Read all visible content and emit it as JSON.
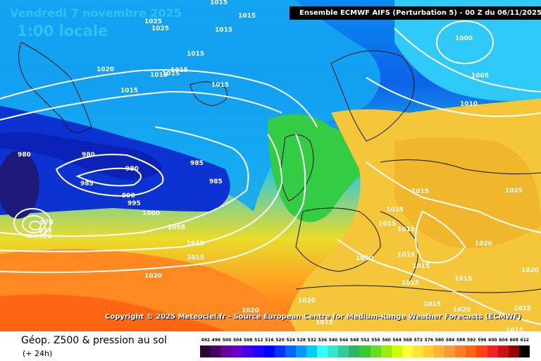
{
  "header": {
    "date": "Vendredi 7 novembre 2025",
    "local_time": "1:00 locale",
    "model_info": "Ensemble ECMWF AIFS  (Perturbation 5)  -  00 Z du 06/11/2025"
  },
  "map": {
    "copyright": "Copyright © 2025 Meteociel.fr - Source European Centre for Medium-Range Weather Forecasts (ECMWF)",
    "isobar_labels": [
      "1015",
      "1015",
      "1015",
      "1025",
      "1025",
      "1015",
      "1015",
      "1020",
      "1015",
      "1015",
      "1015",
      "1015",
      "980",
      "980",
      "980",
      "985",
      "985",
      "985",
      "990",
      "995",
      "1000",
      "1005",
      "970",
      "975",
      "980",
      "1010",
      "1015",
      "1020",
      "1000",
      "1005",
      "1010",
      "1015",
      "1015",
      "1015",
      "1015",
      "1015",
      "1015",
      "1015",
      "1010",
      "1015",
      "1025",
      "1020",
      "1020",
      "1015",
      "1015",
      "1020",
      "1015",
      "1020",
      "1015",
      "1020"
    ]
  },
  "footer": {
    "field_title": "Géop. Z500 & pression au sol",
    "field_subtitle": "(+ 24h)",
    "legend_values": [
      "492",
      "496",
      "500",
      "504",
      "508",
      "512",
      "516",
      "520",
      "524",
      "528",
      "532",
      "536",
      "540",
      "544",
      "548",
      "552",
      "556",
      "560",
      "564",
      "568",
      "572",
      "576",
      "580",
      "584",
      "588",
      "592",
      "596",
      "600",
      "604",
      "608",
      "612"
    ],
    "legend_colors": [
      "#2e0033",
      "#4b0066",
      "#6a0099",
      "#6600cc",
      "#4400e6",
      "#2200ff",
      "#0000ff",
      "#0033ff",
      "#0066ff",
      "#0099ff",
      "#00ccff",
      "#33ffff",
      "#33e6cc",
      "#33cc99",
      "#33b366",
      "#33cc33",
      "#66dd22",
      "#99ee11",
      "#ccff00",
      "#ffff33",
      "#ffe633",
      "#ffcc33",
      "#ffb333",
      "#ff9933",
      "#ff7f22",
      "#ff6611",
      "#ff4411",
      "#ee2222",
      "#cc1111",
      "#990000",
      "#000000"
    ]
  }
}
